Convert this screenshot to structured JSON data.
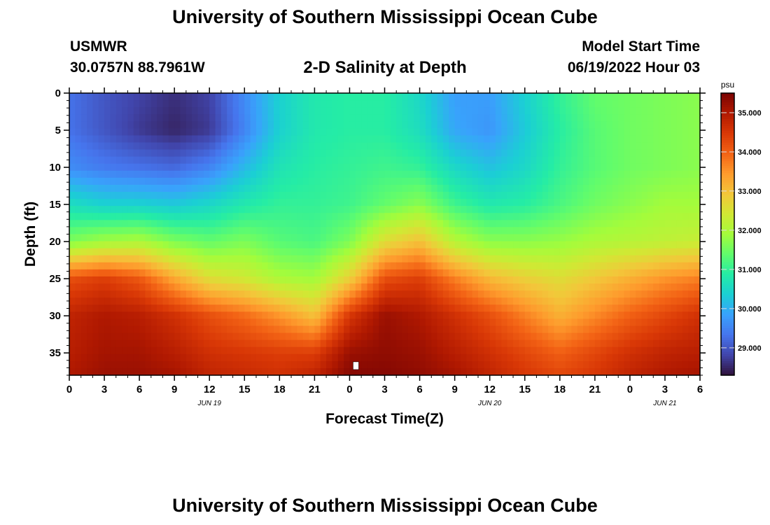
{
  "header": {
    "title": "University of Southern Mississippi Ocean Cube",
    "station": "USMWR",
    "coordinates": "30.0757N  88.7961W",
    "subtitle": "2-D Salinity at Depth",
    "model_start_label": "Model Start Time",
    "model_start_value": "06/19/2022 Hour 03"
  },
  "footer": {
    "title": "University of Southern Mississippi Ocean Cube"
  },
  "chart_data": {
    "type": "heatmap",
    "title": "2-D Salinity at Depth",
    "xlabel": "Forecast Time(Z)",
    "ylabel": "Depth (ft)",
    "x_tick_labels": [
      "0",
      "3",
      "6",
      "9",
      "12",
      "15",
      "18",
      "21",
      "0",
      "3",
      "6",
      "9",
      "12",
      "15",
      "18",
      "21",
      "0",
      "3",
      "6"
    ],
    "x_range_hours": [
      0,
      54
    ],
    "x_date_labels": [
      {
        "label": "JUN 19",
        "hour": 12
      },
      {
        "label": "JUN 20",
        "hour": 36
      },
      {
        "label": "JUN 21",
        "hour": 51
      }
    ],
    "y_ticks": [
      "0",
      "5",
      "10",
      "15",
      "20",
      "25",
      "30",
      "35"
    ],
    "y_range_ft": [
      0,
      38
    ],
    "y_inverted": true,
    "colorbar": {
      "unit": "psu",
      "range": [
        28.3,
        35.5
      ],
      "tick_labels": [
        "35.000",
        "34.000",
        "33.000",
        "32.000",
        "31.000",
        "30.000",
        "29.000"
      ],
      "colors": [
        "#30123b",
        "#4145ab",
        "#4675ed",
        "#39a2fc",
        "#1bcfd4",
        "#24eca6",
        "#61fc6c",
        "#a4fc3b",
        "#d1e834",
        "#f3c63a",
        "#fe9b2d",
        "#f36315",
        "#d93806",
        "#b11901",
        "#7a0403"
      ]
    },
    "salinity_grid_psu": {
      "depth_ft": [
        0,
        5,
        10,
        15,
        20,
        25,
        30,
        35,
        38
      ],
      "hour": [
        0,
        3,
        6,
        9,
        12,
        15,
        18,
        21,
        24,
        27,
        30,
        33,
        36,
        39,
        42,
        45,
        48,
        51,
        54
      ],
      "values": [
        [
          29.3,
          29.0,
          28.8,
          28.6,
          28.8,
          29.6,
          30.4,
          30.8,
          30.9,
          30.9,
          30.5,
          29.8,
          29.8,
          30.4,
          31.0,
          31.4,
          31.5,
          31.6,
          31.7
        ],
        [
          29.3,
          29.0,
          28.7,
          28.5,
          28.7,
          29.5,
          30.4,
          30.8,
          30.9,
          30.9,
          30.6,
          29.9,
          29.7,
          30.3,
          30.9,
          31.3,
          31.5,
          31.6,
          31.7
        ],
        [
          29.6,
          29.4,
          29.3,
          29.2,
          29.5,
          30.1,
          30.7,
          30.9,
          31.0,
          31.1,
          31.0,
          30.5,
          30.2,
          30.5,
          31.0,
          31.3,
          31.5,
          31.6,
          31.7
        ],
        [
          30.6,
          30.4,
          30.4,
          30.3,
          30.5,
          30.8,
          31.0,
          31.0,
          31.1,
          31.4,
          31.7,
          31.1,
          30.8,
          30.9,
          31.2,
          31.5,
          31.7,
          31.9,
          31.9
        ],
        [
          31.6,
          31.9,
          32.0,
          31.6,
          31.4,
          31.6,
          31.3,
          31.2,
          31.6,
          32.6,
          33.0,
          32.1,
          31.7,
          31.7,
          31.8,
          32.0,
          32.1,
          32.2,
          32.3
        ],
        [
          34.2,
          34.4,
          34.1,
          33.3,
          32.6,
          32.4,
          32.0,
          31.9,
          32.8,
          34.2,
          34.4,
          33.7,
          33.1,
          32.8,
          32.6,
          32.9,
          33.2,
          33.5,
          33.7
        ],
        [
          34.8,
          35.0,
          34.9,
          34.6,
          34.2,
          33.9,
          33.5,
          33.0,
          34.5,
          35.2,
          35.0,
          34.6,
          34.2,
          33.7,
          33.2,
          33.6,
          34.0,
          34.3,
          34.6
        ],
        [
          34.9,
          35.1,
          35.1,
          34.9,
          34.6,
          34.5,
          34.4,
          34.4,
          35.2,
          35.3,
          35.2,
          34.9,
          34.6,
          34.3,
          34.0,
          34.3,
          34.6,
          34.8,
          34.9
        ],
        [
          35.0,
          35.2,
          35.2,
          35.1,
          34.8,
          34.7,
          34.6,
          34.8,
          35.4,
          35.4,
          35.3,
          35.1,
          34.8,
          34.5,
          34.3,
          34.5,
          34.8,
          35.0,
          35.1
        ]
      ]
    }
  }
}
